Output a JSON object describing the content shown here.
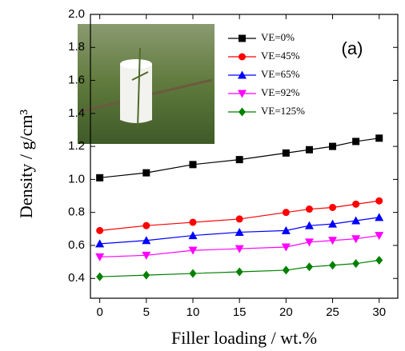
{
  "chart_data": {
    "type": "line",
    "x_label": "Filler loading / wt.%",
    "y_label": "Density / g/cm³",
    "annotation": "(a)",
    "x": [
      0,
      5,
      10,
      15,
      20,
      22.5,
      25,
      27.5,
      30
    ],
    "series": [
      {
        "name": "VE=0%",
        "color": "#000000",
        "marker": "square",
        "values": [
          1.01,
          1.04,
          1.09,
          1.12,
          1.16,
          1.18,
          1.2,
          1.23,
          1.25
        ]
      },
      {
        "name": "VE=45%",
        "color": "#ff0000",
        "marker": "circle",
        "values": [
          0.69,
          0.72,
          0.74,
          0.76,
          0.8,
          0.82,
          0.83,
          0.85,
          0.87
        ]
      },
      {
        "name": "VE=65%",
        "color": "#0000ff",
        "marker": "triangle-up",
        "values": [
          0.61,
          0.63,
          0.66,
          0.68,
          0.69,
          0.72,
          0.73,
          0.75,
          0.77
        ]
      },
      {
        "name": "VE=92%",
        "color": "#ff00ff",
        "marker": "triangle-down",
        "values": [
          0.53,
          0.54,
          0.57,
          0.58,
          0.59,
          0.62,
          0.63,
          0.64,
          0.66
        ]
      },
      {
        "name": "VE=125%",
        "color": "#008000",
        "marker": "diamond",
        "values": [
          0.41,
          0.42,
          0.43,
          0.44,
          0.45,
          0.47,
          0.48,
          0.49,
          0.51
        ]
      }
    ],
    "xlim": [
      -1,
      32
    ],
    "xticks": [
      0,
      5,
      10,
      15,
      20,
      25,
      30
    ],
    "ylim": [
      0.28,
      2.0
    ],
    "yticks": [
      0.4,
      0.6,
      0.8,
      {
        "value": 1,
        "label": "1.0"
      },
      1.2,
      1.4,
      1.6,
      1.8,
      {
        "value": 2,
        "label": "2.0"
      }
    ]
  }
}
